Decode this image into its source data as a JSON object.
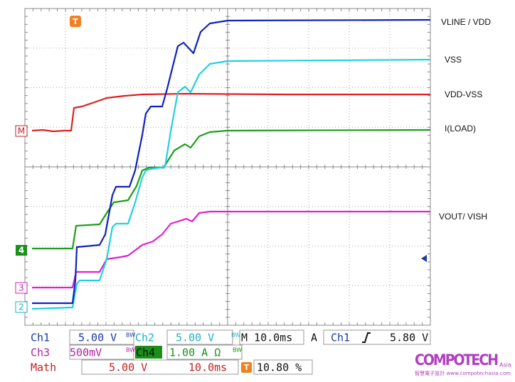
{
  "trace_labels": [
    "VLINE / VDD",
    "VSS",
    "VDD-VSS",
    "I(LOAD)",
    "VOUT/ VISH"
  ],
  "markers": {
    "trigger": "T",
    "math": "M",
    "ch4": "4",
    "ch3": "3",
    "ch2": "2"
  },
  "readout": {
    "row1": {
      "ch1": "Ch1",
      "ch1_scale": "5.00 V",
      "ch1_bw": "BW",
      "ch2": "Ch2",
      "ch2_scale": "5.00 V",
      "ch2_bw": "BW",
      "timebase": "M 10.0ms",
      "mode": "A",
      "trig_source": "Ch1",
      "trig_level": "5.80 V"
    },
    "row2": {
      "ch3": "Ch3",
      "ch3_scale": "500mV",
      "ch3_bw": "BW",
      "ch4": "Ch4",
      "ch4_scale": "1.00 A Ω",
      "ch4_bw": "BW"
    },
    "row3": {
      "math": "Math",
      "math_scale": "5.00 V",
      "math_time": "10.0ms",
      "trig_pos_icon": "T",
      "trig_pos": "10.80 %"
    }
  },
  "watermark": {
    "brand": "COMPOTECH",
    "region": "Asia",
    "tagline": "智慧電子設計 www.compotechasia.com"
  }
}
